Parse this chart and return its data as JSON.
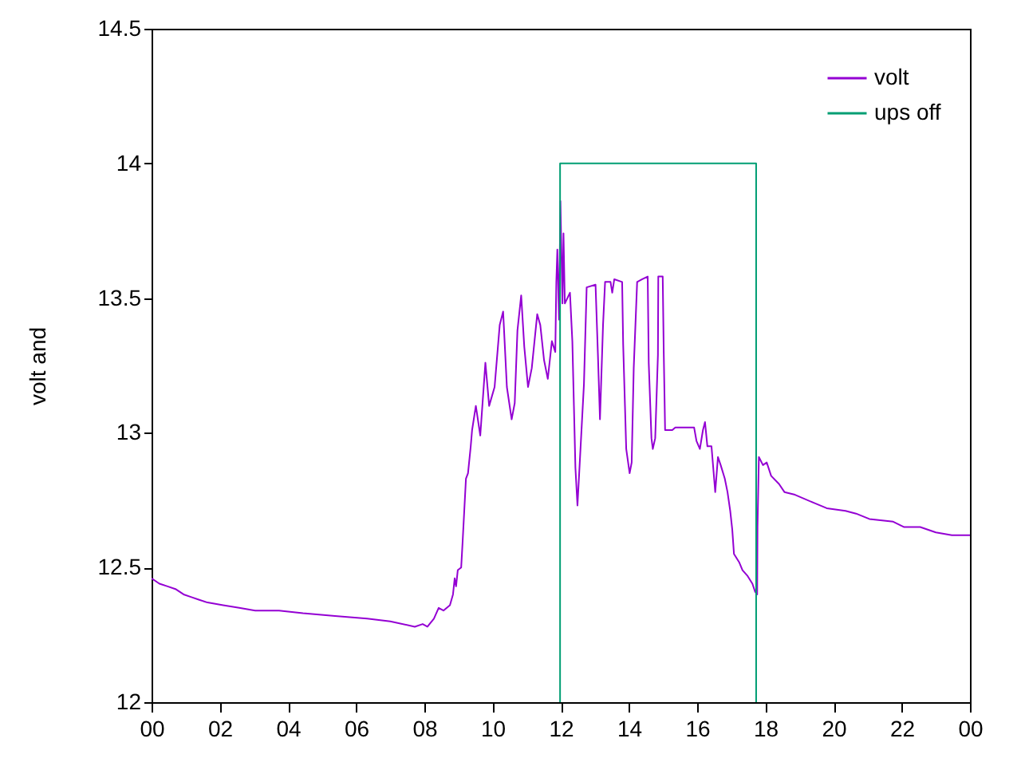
{
  "chart_data": {
    "type": "line",
    "ylabel": "volt and",
    "xlim": [
      0,
      24
    ],
    "ylim": [
      12,
      14.5
    ],
    "xticks": [
      {
        "value": 0,
        "label": "00"
      },
      {
        "value": 2,
        "label": "02"
      },
      {
        "value": 4,
        "label": "04"
      },
      {
        "value": 6,
        "label": "06"
      },
      {
        "value": 8,
        "label": "08"
      },
      {
        "value": 10,
        "label": "10"
      },
      {
        "value": 12,
        "label": "12"
      },
      {
        "value": 14,
        "label": "14"
      },
      {
        "value": 16,
        "label": "16"
      },
      {
        "value": 18,
        "label": "18"
      },
      {
        "value": 20,
        "label": "20"
      },
      {
        "value": 22,
        "label": "22"
      },
      {
        "value": 24,
        "label": "00"
      }
    ],
    "yticks": [
      12,
      12.5,
      13,
      13.5,
      14,
      14.5
    ],
    "grid": false,
    "legend": "top right",
    "series": [
      {
        "name": "volt",
        "color": "#9400d3",
        "x": [
          0,
          0.23,
          0.47,
          0.7,
          0.94,
          1.17,
          1.4,
          1.64,
          2.1,
          2.57,
          3.04,
          3.74,
          4.44,
          5.38,
          6.32,
          7.0,
          7.72,
          7.95,
          8.09,
          8.28,
          8.42,
          8.56,
          8.75,
          8.84,
          8.89,
          8.93,
          8.98,
          9.08,
          9.12,
          9.17,
          9.22,
          9.28,
          9.36,
          9.4,
          9.51,
          9.64,
          9.79,
          9.9,
          10.06,
          10.21,
          10.31,
          10.42,
          10.56,
          10.65,
          10.73,
          10.84,
          10.93,
          11.04,
          11.15,
          11.31,
          11.4,
          11.51,
          11.62,
          11.74,
          11.84,
          11.87,
          11.9,
          11.95,
          11.99,
          12.05,
          12.08,
          12.12,
          12.27,
          12.34,
          12.43,
          12.49,
          12.6,
          12.68,
          12.76,
          13.02,
          13.09,
          13.15,
          13.24,
          13.3,
          13.46,
          13.51,
          13.57,
          13.8,
          13.83,
          13.92,
          14.02,
          14.08,
          14.14,
          14.24,
          14.39,
          14.55,
          14.58,
          14.66,
          14.7,
          14.77,
          14.85,
          14.86,
          14.99,
          15.02,
          15.06,
          15.27,
          15.36,
          15.91,
          15.98,
          16.08,
          16.17,
          16.23,
          16.3,
          16.42,
          16.53,
          16.61,
          16.69,
          16.81,
          16.89,
          16.97,
          17.03,
          17.08,
          17.23,
          17.33,
          17.47,
          17.62,
          17.7,
          17.76,
          17.77,
          17.81,
          17.93,
          18.04,
          18.17,
          18.4,
          18.56,
          18.87,
          19.42,
          19.8,
          20.35,
          20.66,
          21.05,
          21.75,
          22.07,
          22.54,
          23.0,
          23.47,
          24
        ],
        "values": [
          12.46,
          12.44,
          12.43,
          12.42,
          12.4,
          12.39,
          12.38,
          12.37,
          12.36,
          12.35,
          12.34,
          12.34,
          12.33,
          12.32,
          12.31,
          12.3,
          12.28,
          12.29,
          12.28,
          12.31,
          12.35,
          12.34,
          12.36,
          12.4,
          12.46,
          12.43,
          12.49,
          12.5,
          12.59,
          12.71,
          12.83,
          12.85,
          12.95,
          13.01,
          13.1,
          12.99,
          13.26,
          13.1,
          13.17,
          13.4,
          13.45,
          13.17,
          13.05,
          13.11,
          13.38,
          13.51,
          13.32,
          13.17,
          13.24,
          13.44,
          13.4,
          13.27,
          13.2,
          13.34,
          13.3,
          13.56,
          13.68,
          13.42,
          13.86,
          13.48,
          13.74,
          13.48,
          13.52,
          13.34,
          12.87,
          12.73,
          12.99,
          13.18,
          13.54,
          13.55,
          13.29,
          13.05,
          13.4,
          13.56,
          13.56,
          13.52,
          13.57,
          13.56,
          13.33,
          12.94,
          12.85,
          12.89,
          13.24,
          13.56,
          13.57,
          13.58,
          13.26,
          12.98,
          12.94,
          12.98,
          13.29,
          13.58,
          13.58,
          13.3,
          13.01,
          13.01,
          13.02,
          13.02,
          12.97,
          12.94,
          13.01,
          13.04,
          12.95,
          12.95,
          12.78,
          12.91,
          12.88,
          12.83,
          12.78,
          12.71,
          12.64,
          12.55,
          12.52,
          12.49,
          12.47,
          12.44,
          12.41,
          12.4,
          12.65,
          12.91,
          12.88,
          12.89,
          12.84,
          12.81,
          12.78,
          12.77,
          12.74,
          12.72,
          12.71,
          12.7,
          12.68,
          12.67,
          12.65,
          12.65,
          12.63,
          12.62,
          12.62
        ]
      },
      {
        "name": "ups off",
        "color": "#009e73",
        "x": [
          11.98,
          11.98,
          17.73,
          17.73
        ],
        "values": [
          12,
          14,
          14,
          12
        ]
      }
    ]
  }
}
